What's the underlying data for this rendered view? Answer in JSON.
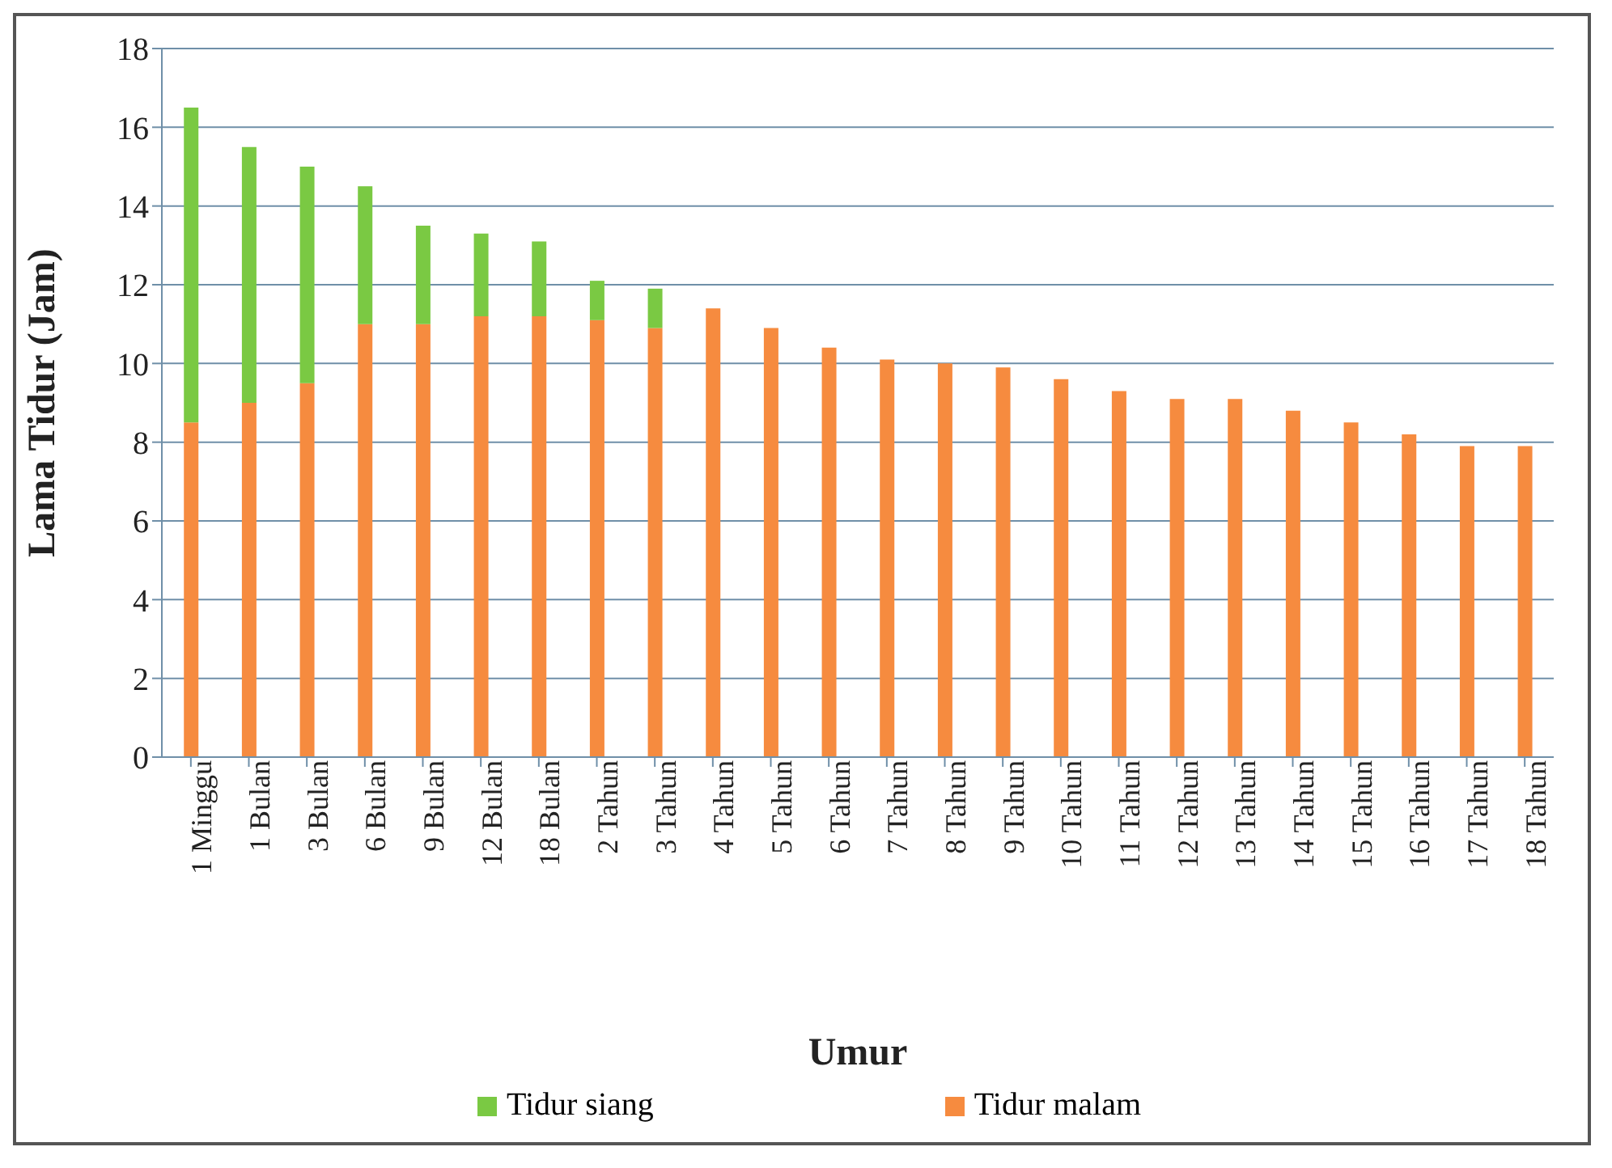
{
  "chart_data": {
    "type": "bar",
    "stacked": true,
    "xlabel": "Umur",
    "ylabel": "Lama Tidur (Jam)",
    "categories": [
      "1 Minggu",
      "1 Bulan",
      "3 Bulan",
      "6 Bulan",
      "9 Bulan",
      "12 Bulan",
      "18 Bulan",
      "2 Tahun",
      "3 Tahun",
      "4 Tahun",
      "5 Tahun",
      "6 Tahun",
      "7 Tahun",
      "8 Tahun",
      "9 Tahun",
      "10 Tahun",
      "11 Tahun",
      "12 Tahun",
      "13 Tahun",
      "14 Tahun",
      "15 Tahun",
      "16 Tahun",
      "17 Tahun",
      "18 Tahun"
    ],
    "series": [
      {
        "name": "Tidur malam",
        "color": "#f68b3f",
        "values": [
          8.5,
          9,
          9.5,
          11,
          11,
          11.2,
          11.2,
          11.1,
          10.9,
          11.4,
          10.9,
          10.4,
          10.1,
          10,
          9.9,
          9.6,
          9.3,
          9.1,
          9.1,
          8.8,
          8.5,
          8.2,
          7.9,
          7.9
        ]
      },
      {
        "name": "Tidur siang",
        "color": "#7ac943",
        "values": [
          8,
          6.5,
          5.5,
          3.5,
          2.5,
          2.1,
          1.9,
          1.0,
          1.0,
          null,
          null,
          null,
          null,
          null,
          null,
          null,
          null,
          null,
          null,
          null,
          null,
          null,
          null,
          null
        ]
      }
    ],
    "ylim": [
      0,
      18
    ],
    "yticks": [
      0,
      2,
      4,
      6,
      8,
      10,
      12,
      14,
      16,
      18
    ],
    "grid": "y",
    "legend": "bottom"
  }
}
